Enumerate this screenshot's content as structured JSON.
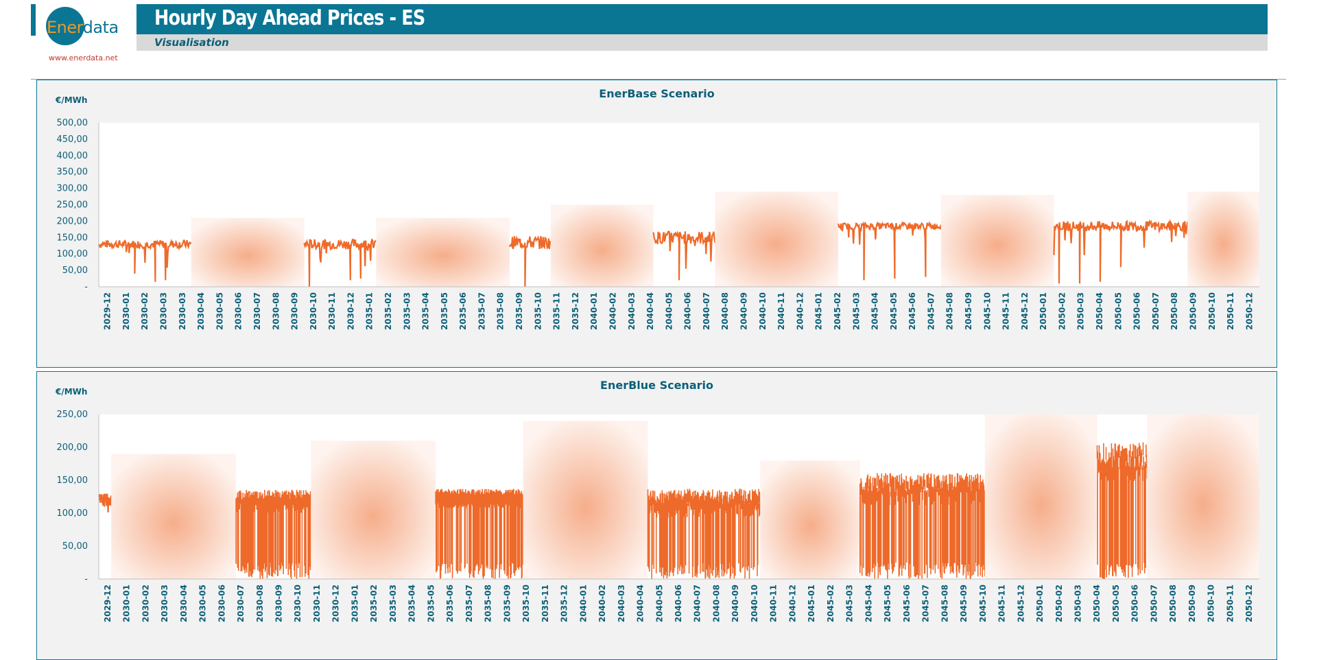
{
  "logo": {
    "text_a": "Ener",
    "text_b": "data",
    "url": "www.enerdata.net"
  },
  "header": {
    "title": "Hourly Day Ahead Prices - ES",
    "subtitle": "Visualisation"
  },
  "colors": {
    "accent": "#0b7594",
    "series": "#ee6a2a",
    "panel_bg": "#f2f2f2"
  },
  "chart_data": [
    {
      "type": "area",
      "title": "EnerBase Scenario",
      "ylabel": "€/MWh",
      "ylim": [
        0,
        500
      ],
      "yticks": [
        "-",
        "50,00",
        "100,00",
        "150,00",
        "200,00",
        "250,00",
        "300,00",
        "350,00",
        "400,00",
        "450,00",
        "500,00"
      ],
      "ytick_values": [
        0,
        50,
        100,
        150,
        200,
        250,
        300,
        350,
        400,
        450,
        500
      ],
      "categories": [
        "2029-12",
        "2030-01",
        "2030-02",
        "2030-03",
        "2030-03",
        "2030-04",
        "2030-05",
        "2030-06",
        "2030-07",
        "2030-08",
        "2030-09",
        "2030-10",
        "2030-11",
        "2030-12",
        "2035-01",
        "2035-02",
        "2035-03",
        "2035-04",
        "2035-05",
        "2035-06",
        "2035-07",
        "2035-08",
        "2035-09",
        "2035-10",
        "2035-11",
        "2035-12",
        "2040-01",
        "2040-02",
        "2040-03",
        "2040-04",
        "2040-05",
        "2040-06",
        "2040-07",
        "2040-08",
        "2040-09",
        "2040-10",
        "2040-11",
        "2040-12",
        "2045-01",
        "2045-02",
        "2045-03",
        "2045-04",
        "2045-05",
        "2045-06",
        "2045-07",
        "2045-08",
        "2045-09",
        "2045-10",
        "2045-11",
        "2045-12",
        "2050-01",
        "2050-02",
        "2050-03",
        "2050-04",
        "2050-05",
        "2050-06",
        "2050-07",
        "2050-08",
        "2050-09",
        "2050-10",
        "2050-11",
        "2050-12"
      ],
      "segments": [
        {
          "kind": "line",
          "from": 0,
          "to": 9,
          "base": 130,
          "spread": 25,
          "dips": [
            [
              3,
              40
            ],
            [
              5,
              15
            ],
            [
              6,
              20
            ]
          ]
        },
        {
          "kind": "fade",
          "from": 9,
          "to": 20,
          "level": 210
        },
        {
          "kind": "line",
          "from": 20,
          "to": 27,
          "base": 130,
          "spread": 30,
          "dips": [
            [
              20,
              0
            ],
            [
              24,
              20
            ],
            [
              25,
              25
            ]
          ]
        },
        {
          "kind": "fade",
          "from": 27,
          "to": 40,
          "level": 210
        },
        {
          "kind": "line",
          "from": 40,
          "to": 44,
          "base": 135,
          "spread": 40,
          "dips": [
            [
              41,
              0
            ]
          ]
        },
        {
          "kind": "fade",
          "from": 44,
          "to": 54,
          "level": 250
        },
        {
          "kind": "line",
          "from": 54,
          "to": 60,
          "base": 150,
          "spread": 40,
          "dips": [
            [
              56,
              20
            ]
          ]
        },
        {
          "kind": "fade",
          "from": 60,
          "to": 72,
          "level": 290
        },
        {
          "kind": "line",
          "from": 72,
          "to": 82,
          "base": 185,
          "spread": 20,
          "dips": [
            [
              74,
              20
            ],
            [
              77,
              25
            ],
            [
              80,
              30
            ]
          ]
        },
        {
          "kind": "fade",
          "from": 82,
          "to": 93,
          "level": 280
        },
        {
          "kind": "line",
          "from": 93,
          "to": 106,
          "base": 185,
          "spread": 30,
          "dips": [
            [
              93,
              10
            ],
            [
              95,
              10
            ],
            [
              97,
              15
            ],
            [
              99,
              60
            ]
          ]
        },
        {
          "kind": "fade",
          "from": 106,
          "to": 113,
          "level": 290
        }
      ]
    },
    {
      "type": "area",
      "title": "EnerBlue Scenario",
      "ylabel": "€/MWh",
      "ylim": [
        0,
        250
      ],
      "yticks": [
        "-",
        "50,00",
        "100,00",
        "150,00",
        "200,00",
        "250,00"
      ],
      "ytick_values": [
        0,
        50,
        100,
        150,
        200,
        250
      ],
      "categories": [
        "2029-12",
        "2030-01",
        "2030-02",
        "2030-03",
        "2030-04",
        "2030-05",
        "2030-06",
        "2030-07",
        "2030-08",
        "2030-09",
        "2030-10",
        "2030-11",
        "2030-12",
        "2035-01",
        "2035-02",
        "2035-03",
        "2035-04",
        "2035-05",
        "2035-06",
        "2035-07",
        "2035-08",
        "2035-09",
        "2035-10",
        "2035-11",
        "2035-12",
        "2040-01",
        "2040-02",
        "2040-03",
        "2040-04",
        "2040-05",
        "2040-06",
        "2040-07",
        "2040-08",
        "2040-09",
        "2040-10",
        "2040-11",
        "2040-12",
        "2045-01",
        "2045-02",
        "2045-03",
        "2045-04",
        "2045-05",
        "2045-06",
        "2045-07",
        "2045-08",
        "2045-09",
        "2045-10",
        "2045-11",
        "2045-12",
        "2050-01",
        "2050-02",
        "2050-03",
        "2050-04",
        "2050-05",
        "2050-06",
        "2050-07",
        "2050-08",
        "2050-09",
        "2050-10",
        "2050-11",
        "2050-12"
      ],
      "segments": [
        {
          "kind": "line",
          "from": 0,
          "to": 1,
          "base": 120,
          "spread": 20,
          "dips": []
        },
        {
          "kind": "fade",
          "from": 1,
          "to": 11,
          "level": 190
        },
        {
          "kind": "band",
          "from": 11,
          "to": 17,
          "base": 125,
          "spread": 15
        },
        {
          "kind": "fade",
          "from": 17,
          "to": 27,
          "level": 210
        },
        {
          "kind": "band",
          "from": 27,
          "to": 34,
          "base": 130,
          "spread": 10
        },
        {
          "kind": "fade",
          "from": 34,
          "to": 44,
          "level": 240
        },
        {
          "kind": "band",
          "from": 44,
          "to": 53,
          "base": 120,
          "spread": 25
        },
        {
          "kind": "fade",
          "from": 53,
          "to": 61,
          "level": 180
        },
        {
          "kind": "band",
          "from": 61,
          "to": 71,
          "base": 140,
          "spread": 30
        },
        {
          "kind": "fade",
          "from": 71,
          "to": 80,
          "level": 250
        },
        {
          "kind": "band",
          "from": 80,
          "to": 84,
          "base": 180,
          "spread": 40
        },
        {
          "kind": "fade",
          "from": 84,
          "to": 93,
          "level": 250
        }
      ]
    }
  ]
}
